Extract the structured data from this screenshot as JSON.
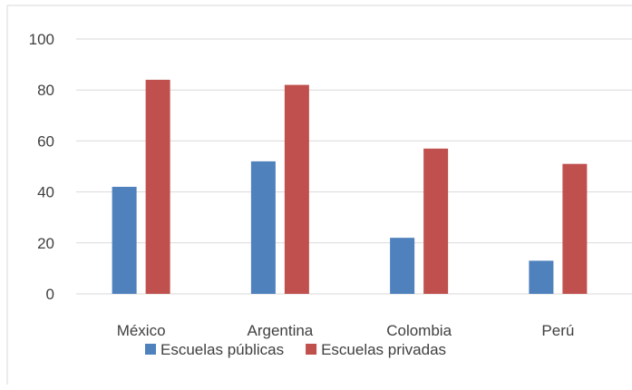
{
  "chart_data": {
    "type": "bar",
    "title": "",
    "xlabel": "",
    "ylabel": "",
    "categories": [
      "México",
      "Argentina",
      "Colombia",
      "Perú"
    ],
    "series": [
      {
        "name": "Escuelas públicas",
        "color": "#4f81bd",
        "values": [
          42,
          52,
          22,
          13
        ]
      },
      {
        "name": "Escuelas privadas",
        "color": "#c0504d",
        "values": [
          84,
          82,
          57,
          51
        ]
      }
    ],
    "ylim": [
      0,
      100
    ],
    "yticks": [
      "0",
      "20",
      "40",
      "60",
      "80",
      "100"
    ],
    "grid": true,
    "legend_position": "bottom"
  }
}
